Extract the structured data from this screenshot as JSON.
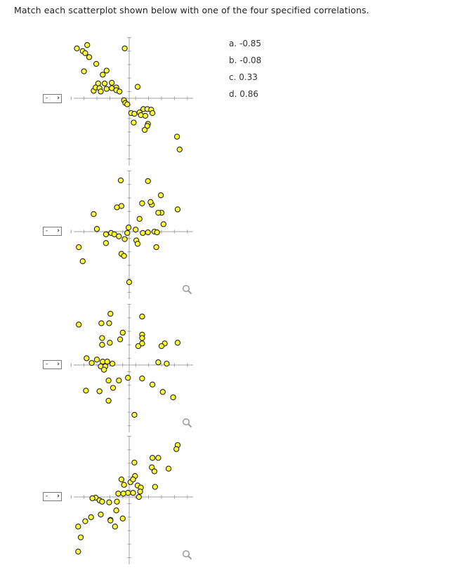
{
  "prompt": "Match each scatterplot shown below with one of the four specified correlations.",
  "options": [
    "a. -0.85",
    "b. -0.08",
    "c. 0.33",
    "d. 0.86"
  ],
  "colors": {
    "point_fill": "#ffff33",
    "point_stroke": "#222222",
    "axis": "#a0a0a0"
  },
  "icons": {
    "zoom": "magnifier-icon"
  },
  "plots": [
    {
      "select_value": "-",
      "chart_data": {
        "type": "scatter",
        "xlim": [
          -9,
          9
        ],
        "ylim": [
          -9,
          9
        ],
        "points": [
          [
            -8.1,
            7.4
          ],
          [
            -7.2,
            7.0
          ],
          [
            -6.5,
            7.9
          ],
          [
            -6.8,
            6.7
          ],
          [
            -6.2,
            6.1
          ],
          [
            -0.7,
            7.4
          ],
          [
            -5.1,
            5.1
          ],
          [
            -7.0,
            4.0
          ],
          [
            -3.5,
            4.1
          ],
          [
            -4.1,
            3.5
          ],
          [
            -4.8,
            2.2
          ],
          [
            -5.5,
            1.1
          ],
          [
            -5.2,
            1.6
          ],
          [
            -4.6,
            1.5
          ],
          [
            -4.4,
            1.0
          ],
          [
            -3.8,
            2.2
          ],
          [
            -3.5,
            1.4
          ],
          [
            -2.7,
            2.3
          ],
          [
            -2.0,
            1.6
          ],
          [
            -2.7,
            1.5
          ],
          [
            -2.0,
            1.2
          ],
          [
            -1.5,
            1.0
          ],
          [
            1.3,
            1.7
          ],
          [
            -0.8,
            -0.3
          ],
          [
            -0.6,
            -0.7
          ],
          [
            -0.3,
            -0.9
          ],
          [
            0.3,
            -2.2
          ],
          [
            0.8,
            -2.3
          ],
          [
            1.6,
            -2.1
          ],
          [
            2.2,
            -1.6
          ],
          [
            2.8,
            -1.6
          ],
          [
            1.8,
            -2.5
          ],
          [
            2.5,
            -2.6
          ],
          [
            3.4,
            -1.7
          ],
          [
            3.6,
            -2.2
          ],
          [
            0.7,
            -3.6
          ],
          [
            2.9,
            -3.8
          ],
          [
            2.8,
            -4.1
          ],
          [
            2.4,
            -4.7
          ],
          [
            7.4,
            -5.7
          ],
          [
            7.8,
            -7.6
          ]
        ]
      }
    },
    {
      "select_value": "-",
      "chart_data": {
        "type": "scatter",
        "xlim": [
          -9,
          9
        ],
        "ylim": [
          -9,
          9
        ],
        "points": [
          [
            -1.3,
            7.6
          ],
          [
            2.9,
            7.5
          ],
          [
            4.9,
            5.4
          ],
          [
            -1.2,
            3.8
          ],
          [
            -1.9,
            3.6
          ],
          [
            2.0,
            4.2
          ],
          [
            3.5,
            4.0
          ],
          [
            3.3,
            4.4
          ],
          [
            5.0,
            2.8
          ],
          [
            4.5,
            2.8
          ],
          [
            7.5,
            3.3
          ],
          [
            -5.5,
            2.6
          ],
          [
            1.6,
            1.9
          ],
          [
            -0.1,
            0.6
          ],
          [
            1.0,
            0.3
          ],
          [
            5.3,
            1.1
          ],
          [
            -5.0,
            0.4
          ],
          [
            -2.8,
            -0.2
          ],
          [
            -3.6,
            -0.4
          ],
          [
            -2.3,
            -0.4
          ],
          [
            -1.6,
            -0.7
          ],
          [
            -0.3,
            -0.2
          ],
          [
            2.1,
            -0.2
          ],
          [
            2.9,
            -0.1
          ],
          [
            3.9,
            0.0
          ],
          [
            4.3,
            -0.1
          ],
          [
            1.1,
            -1.3
          ],
          [
            1.3,
            -1.8
          ],
          [
            -3.6,
            -1.7
          ],
          [
            -0.7,
            -1.1
          ],
          [
            4.2,
            -2.3
          ],
          [
            -7.8,
            -2.3
          ],
          [
            -1.2,
            -3.3
          ],
          [
            -0.8,
            -3.6
          ],
          [
            -7.2,
            -4.4
          ],
          [
            0.0,
            -7.5
          ]
        ]
      }
    },
    {
      "select_value": "-",
      "chart_data": {
        "type": "scatter",
        "xlim": [
          -9,
          9
        ],
        "ylim": [
          -9,
          9
        ],
        "points": [
          [
            -2.9,
            7.6
          ],
          [
            2.0,
            7.2
          ],
          [
            -7.8,
            6.0
          ],
          [
            -4.3,
            6.2
          ],
          [
            -3.1,
            6.2
          ],
          [
            -4.2,
            4.0
          ],
          [
            -1.0,
            4.8
          ],
          [
            2.0,
            4.5
          ],
          [
            2.0,
            4.0
          ],
          [
            -3.0,
            3.3
          ],
          [
            -1.4,
            3.8
          ],
          [
            -4.2,
            3.0
          ],
          [
            2.0,
            3.2
          ],
          [
            5.5,
            3.2
          ],
          [
            5.0,
            2.8
          ],
          [
            7.5,
            3.3
          ],
          [
            1.4,
            2.8
          ],
          [
            -6.6,
            1.0
          ],
          [
            -5.0,
            0.8
          ],
          [
            -4.1,
            0.5
          ],
          [
            -3.4,
            0.5
          ],
          [
            -5.8,
            0.3
          ],
          [
            -4.4,
            -0.2
          ],
          [
            -3.7,
            -0.2
          ],
          [
            -2.6,
            0.2
          ],
          [
            -3.9,
            -0.7
          ],
          [
            4.5,
            0.4
          ],
          [
            5.8,
            0.2
          ],
          [
            -3.2,
            -2.3
          ],
          [
            -1.6,
            -2.3
          ],
          [
            -0.2,
            -1.9
          ],
          [
            2.0,
            -2.0
          ],
          [
            -2.5,
            -3.4
          ],
          [
            -6.7,
            -3.8
          ],
          [
            -4.6,
            -3.9
          ],
          [
            3.6,
            -2.9
          ],
          [
            5.2,
            -4.0
          ],
          [
            -3.2,
            -5.3
          ],
          [
            6.8,
            -4.8
          ],
          [
            0.8,
            -7.4
          ]
        ]
      }
    },
    {
      "select_value": "-",
      "chart_data": {
        "type": "scatter",
        "xlim": [
          -9,
          9
        ],
        "ylim": [
          -9,
          9
        ],
        "points": [
          [
            7.5,
            7.7
          ],
          [
            7.3,
            7.1
          ],
          [
            3.6,
            5.8
          ],
          [
            4.5,
            5.8
          ],
          [
            0.8,
            5.1
          ],
          [
            3.5,
            4.4
          ],
          [
            6.1,
            4.2
          ],
          [
            3.9,
            3.8
          ],
          [
            0.9,
            3.1
          ],
          [
            -1.2,
            2.6
          ],
          [
            0.2,
            2.2
          ],
          [
            0.6,
            2.6
          ],
          [
            -0.8,
            1.8
          ],
          [
            1.3,
            1.7
          ],
          [
            1.8,
            1.4
          ],
          [
            4.0,
            1.5
          ],
          [
            1.7,
            0.8
          ],
          [
            -0.2,
            0.6
          ],
          [
            0.6,
            0.6
          ],
          [
            1.5,
            0.0
          ],
          [
            -1.7,
            0.5
          ],
          [
            -0.9,
            0.5
          ],
          [
            -5.2,
            -0.1
          ],
          [
            -5.7,
            -0.2
          ],
          [
            -4.6,
            -0.5
          ],
          [
            -4.2,
            -0.7
          ],
          [
            -3.1,
            -0.8
          ],
          [
            -1.9,
            -0.7
          ],
          [
            -2.0,
            -2.0
          ],
          [
            -4.4,
            -2.6
          ],
          [
            -5.9,
            -3.0
          ],
          [
            -2.9,
            -3.4
          ],
          [
            -2.9,
            -3.5
          ],
          [
            -1.0,
            -3.2
          ],
          [
            -6.8,
            -3.6
          ],
          [
            -7.9,
            -4.4
          ],
          [
            -2.2,
            -4.4
          ],
          [
            -7.5,
            -6.0
          ],
          [
            -7.9,
            -8.1
          ]
        ]
      }
    }
  ]
}
